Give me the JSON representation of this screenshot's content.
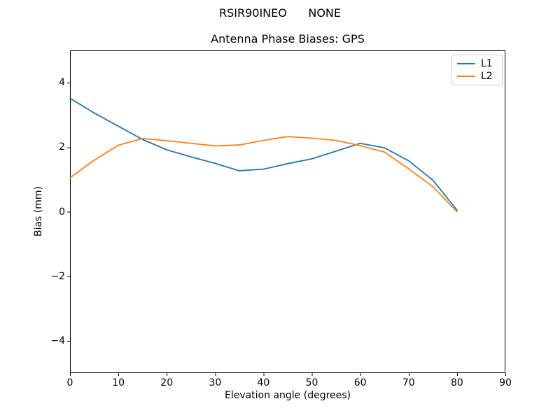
{
  "suptitle": "RSIR90INEO      NONE",
  "chart_data": {
    "type": "line",
    "title": "Antenna Phase Biases: GPS",
    "xlabel": "Elevation angle (degrees)",
    "ylabel": "Bias (mm)",
    "xlim": [
      0,
      90
    ],
    "ylim": [
      -5,
      5
    ],
    "xticks": [
      0,
      10,
      20,
      30,
      40,
      50,
      60,
      70,
      80,
      90
    ],
    "yticks": [
      -4,
      -2,
      0,
      2,
      4
    ],
    "grid": false,
    "legend_position": "upper right",
    "x": [
      0,
      5,
      10,
      15,
      20,
      25,
      30,
      35,
      40,
      45,
      50,
      55,
      60,
      65,
      70,
      75,
      80
    ],
    "series": [
      {
        "name": "L1",
        "color": "#1f77b4",
        "values": [
          3.52,
          3.06,
          2.65,
          2.24,
          1.92,
          1.7,
          1.5,
          1.27,
          1.32,
          1.49,
          1.64,
          1.88,
          2.12,
          1.98,
          1.58,
          0.98,
          0.05
        ]
      },
      {
        "name": "L2",
        "color": "#ff7f0e",
        "values": [
          1.05,
          1.6,
          2.06,
          2.27,
          2.2,
          2.12,
          2.04,
          2.07,
          2.21,
          2.33,
          2.28,
          2.21,
          2.05,
          1.85,
          1.33,
          0.78,
          0.0
        ]
      }
    ]
  },
  "colors": {
    "spine": "#000000",
    "legend_border": "#cccccc"
  }
}
